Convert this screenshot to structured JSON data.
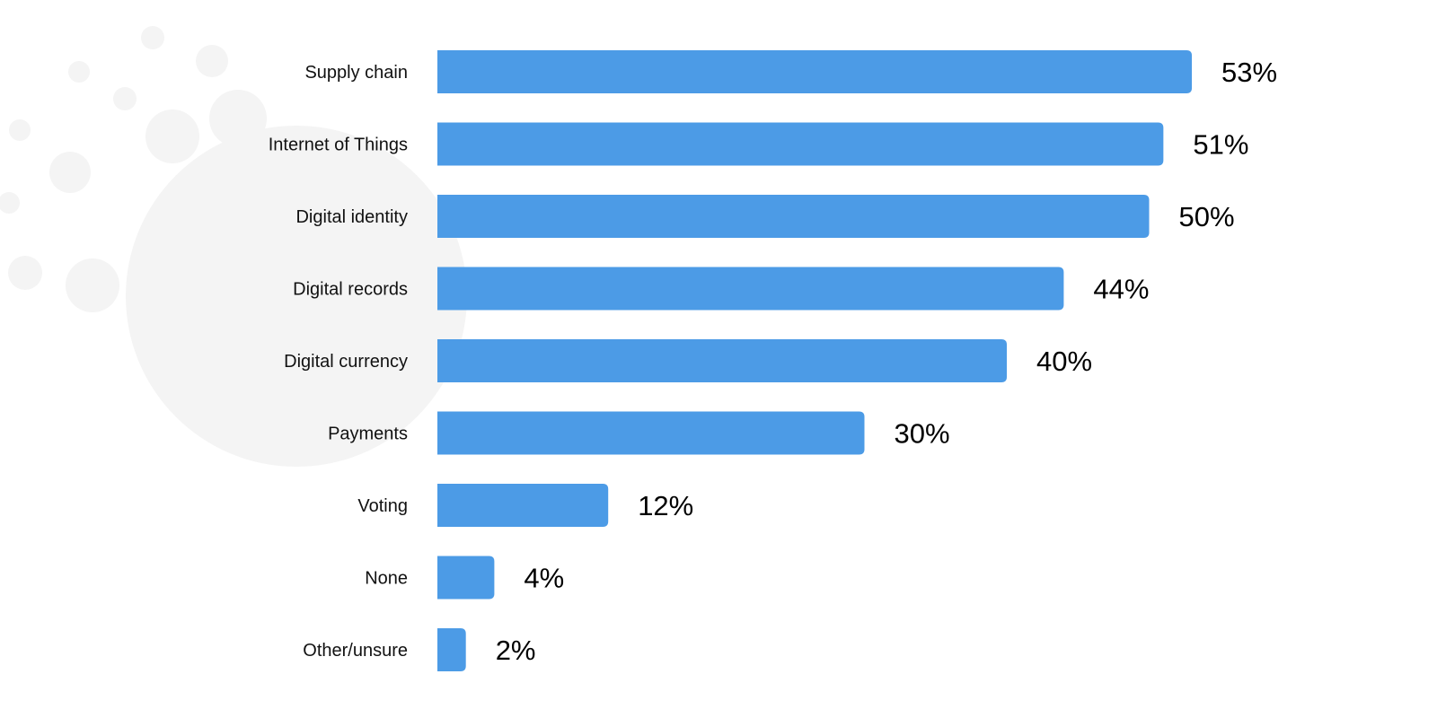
{
  "chart_data": {
    "type": "bar",
    "orientation": "horizontal",
    "categories": [
      "Supply chain",
      "Internet of Things",
      "Digital identity",
      "Digital records",
      "Digital currency",
      "Payments",
      "Voting",
      "None",
      "Other/unsure"
    ],
    "values": [
      53,
      51,
      50,
      44,
      40,
      30,
      12,
      4,
      2
    ],
    "value_labels": [
      "53%",
      "51%",
      "50%",
      "44%",
      "40%",
      "30%",
      "12%",
      "4%",
      "2%"
    ],
    "value_unit": "%",
    "xlim": [
      0,
      100
    ],
    "grid": false,
    "legend": "none",
    "colors": {
      "bar": "#4c9be6",
      "watermark": "#f4f4f4"
    }
  }
}
